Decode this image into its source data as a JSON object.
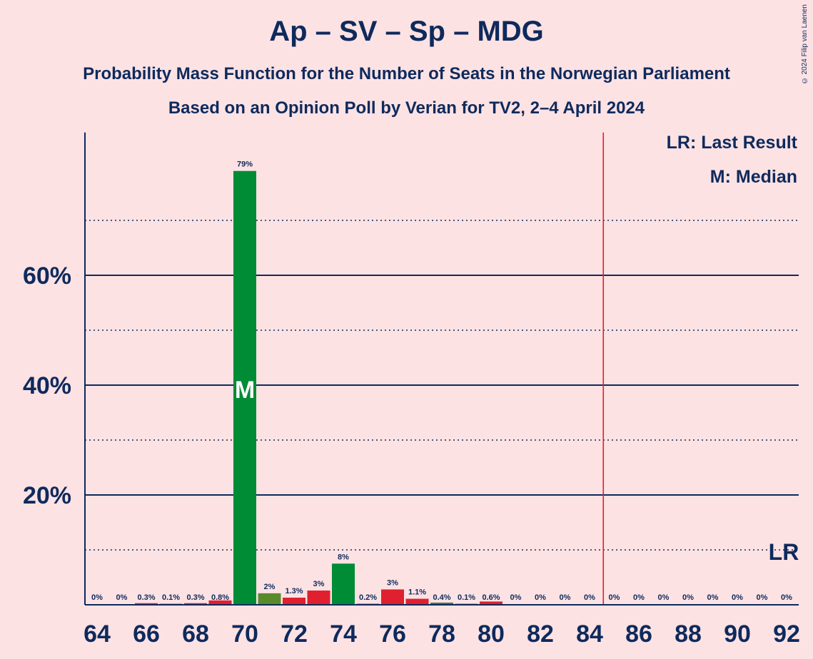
{
  "header": {
    "title": "Ap – SV – Sp – MDG",
    "subtitle1": "Probability Mass Function for the Number of Seats in the Norwegian Parliament",
    "subtitle2": "Based on an Opinion Poll by Verian for TV2, 2–4 April 2024",
    "copyright": "© 2024 Filip van Laenen"
  },
  "legend": {
    "last_result": "LR: Last Result",
    "median": "M: Median"
  },
  "chart_data": {
    "type": "bar",
    "title": "Ap – SV – Sp – MDG",
    "ylim": [
      0,
      86
    ],
    "yticks": [
      20,
      40,
      60
    ],
    "ytick_labels": [
      "20%",
      "40%",
      "60%"
    ],
    "minor_gridlines": [
      10,
      30,
      50,
      70
    ],
    "grid": true,
    "x": [
      64,
      65,
      66,
      67,
      68,
      69,
      70,
      71,
      72,
      73,
      74,
      75,
      76,
      77,
      78,
      79,
      80,
      81,
      82,
      83,
      84,
      85,
      86,
      87,
      88,
      89,
      90,
      91,
      92
    ],
    "xtick_labels": [
      "64",
      "66",
      "68",
      "70",
      "72",
      "74",
      "76",
      "78",
      "80",
      "82",
      "84",
      "86",
      "88",
      "90",
      "92"
    ],
    "values": [
      0,
      0,
      0.3,
      0.1,
      0.3,
      0.8,
      79,
      2.1,
      1.3,
      2.6,
      7.5,
      0.2,
      2.8,
      1.1,
      0.4,
      0.1,
      0.6,
      0,
      0,
      0,
      0,
      0,
      0,
      0,
      0,
      0,
      0,
      0,
      0
    ],
    "labels": [
      "0%",
      "0%",
      "0.3%",
      "0.1%",
      "0.3%",
      "0.8%",
      "79%",
      "2%",
      "1.3%",
      "3%",
      "8%",
      "0.2%",
      "3%",
      "1.1%",
      "0.4%",
      "0.1%",
      "0.6%",
      "0%",
      "0%",
      "0%",
      "0%",
      "0%",
      "0%",
      "0%",
      "0%",
      "0%",
      "0%",
      "0%",
      "0%"
    ],
    "colors": [
      "#E0202E",
      "#E0202E",
      "#E0202E",
      "#E0202E",
      "#E0202E",
      "#E0202E",
      "#008B35",
      "#5A8A2A",
      "#E0202E",
      "#E0202E",
      "#008B35",
      "#E0202E",
      "#E0202E",
      "#E0202E",
      "#4A7A3A",
      "#E0202E",
      "#E0202E",
      "#E0202E",
      "#E0202E",
      "#E0202E",
      "#E0202E",
      "#E0202E",
      "#E0202E",
      "#E0202E",
      "#E0202E",
      "#E0202E",
      "#E0202E",
      "#E0202E",
      "#E0202E"
    ],
    "median": 70,
    "median_label": "M",
    "majority_line": 85,
    "last_result": 92,
    "last_result_label": "LR",
    "axis_color": "#0E2A5C",
    "majority_color": "#E0202E"
  }
}
